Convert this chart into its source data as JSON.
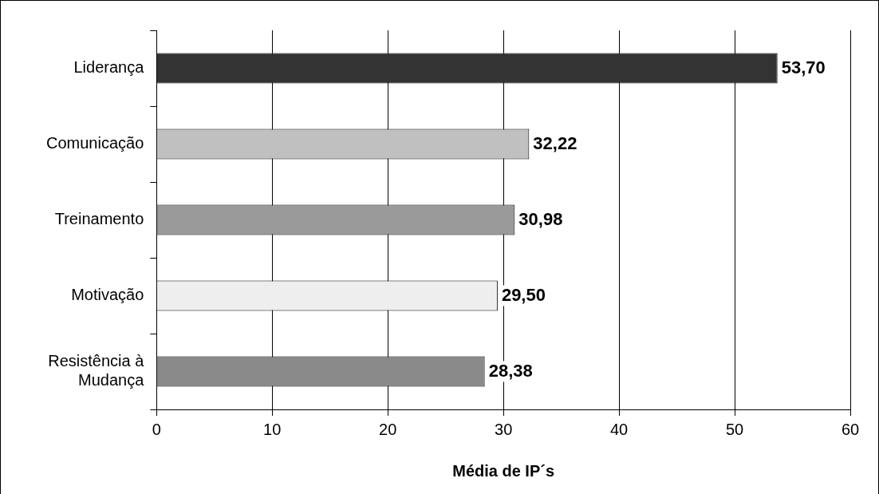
{
  "chart_data": {
    "type": "bar",
    "orientation": "horizontal",
    "xlabel": "Média de IP´s",
    "categories": [
      "Liderança",
      "Comunicação",
      "Treinamento",
      "Motivação",
      "Resistência à Mudança"
    ],
    "values": [
      53.7,
      32.22,
      30.98,
      29.5,
      28.38
    ],
    "colors": [
      "#333333",
      "#c0c0c0",
      "#9a9a9a",
      "#eeeeee",
      "#8a8a8a"
    ],
    "value_labels": [
      "53,70",
      "32,22",
      "30,98",
      "29,50",
      "28,38"
    ],
    "xlim": [
      0,
      60
    ],
    "xticks": [
      0,
      10,
      20,
      30,
      40,
      50,
      60
    ],
    "grid": "x",
    "legend": false
  }
}
